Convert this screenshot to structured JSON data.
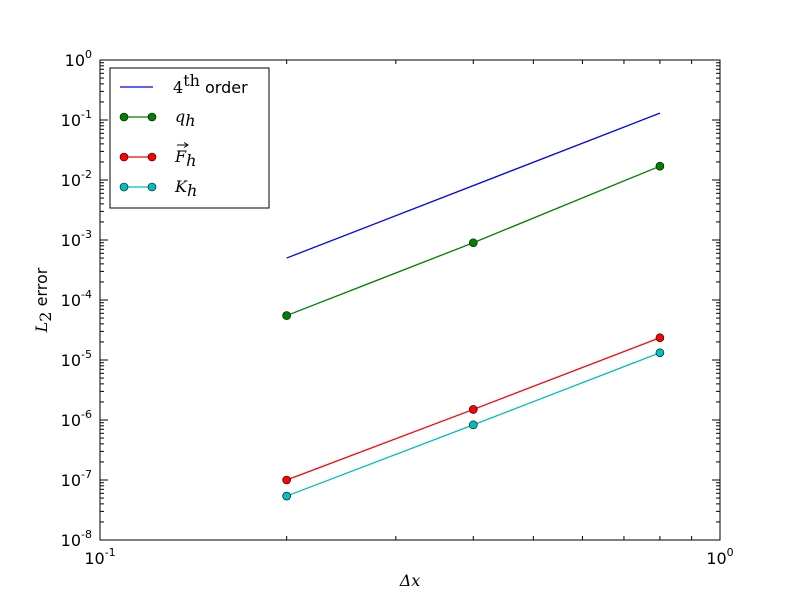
{
  "chart_data": {
    "type": "line",
    "xscale": "log",
    "yscale": "log",
    "xlim": [
      0.1,
      1.0
    ],
    "ylim": [
      1e-08,
      1.0
    ],
    "x_ticks": [
      {
        "value": 0.1,
        "base": "10",
        "exp": "-1"
      },
      {
        "value": 1.0,
        "base": "10",
        "exp": "0"
      }
    ],
    "y_ticks": [
      {
        "value": 1e-08,
        "base": "10",
        "exp": "-8"
      },
      {
        "value": 1e-07,
        "base": "10",
        "exp": "-7"
      },
      {
        "value": 1e-06,
        "base": "10",
        "exp": "-6"
      },
      {
        "value": 1e-05,
        "base": "10",
        "exp": "-5"
      },
      {
        "value": 0.0001,
        "base": "10",
        "exp": "-4"
      },
      {
        "value": 0.001,
        "base": "10",
        "exp": "-3"
      },
      {
        "value": 0.01,
        "base": "10",
        "exp": "-2"
      },
      {
        "value": 0.1,
        "base": "10",
        "exp": "-1"
      },
      {
        "value": 1.0,
        "base": "10",
        "exp": "0"
      }
    ],
    "xlabel": "Δx",
    "ylabel_main": "L",
    "ylabel_sub": "2",
    "ylabel_rest": " error",
    "grid": false,
    "legend_position": "upper-left",
    "series": [
      {
        "key": "fourth-order",
        "legend_main": "4",
        "legend_sup": "th",
        "legend_rest": " order",
        "color": "#0000ff",
        "marker": false,
        "x": [
          0.2,
          0.8
        ],
        "y": [
          0.0005,
          0.13
        ]
      },
      {
        "key": "q-h",
        "legend_main": "q",
        "legend_sub": "h",
        "color": "#008000",
        "marker": true,
        "x": [
          0.2,
          0.4,
          0.8
        ],
        "y": [
          5.5e-05,
          0.0009,
          0.017
        ]
      },
      {
        "key": "f-h",
        "legend_main": "F",
        "legend_sub": "h",
        "legend_vec": true,
        "color": "#ff0000",
        "marker": true,
        "x": [
          0.2,
          0.4,
          0.8
        ],
        "y": [
          1e-07,
          1.5e-06,
          2.35e-05
        ]
      },
      {
        "key": "k-h",
        "legend_main": "K",
        "legend_sub": "h",
        "color": "#00bfbf",
        "marker": true,
        "x": [
          0.2,
          0.4,
          0.8
        ],
        "y": [
          5.4e-08,
          8.3e-07,
          1.32e-05
        ]
      }
    ]
  }
}
